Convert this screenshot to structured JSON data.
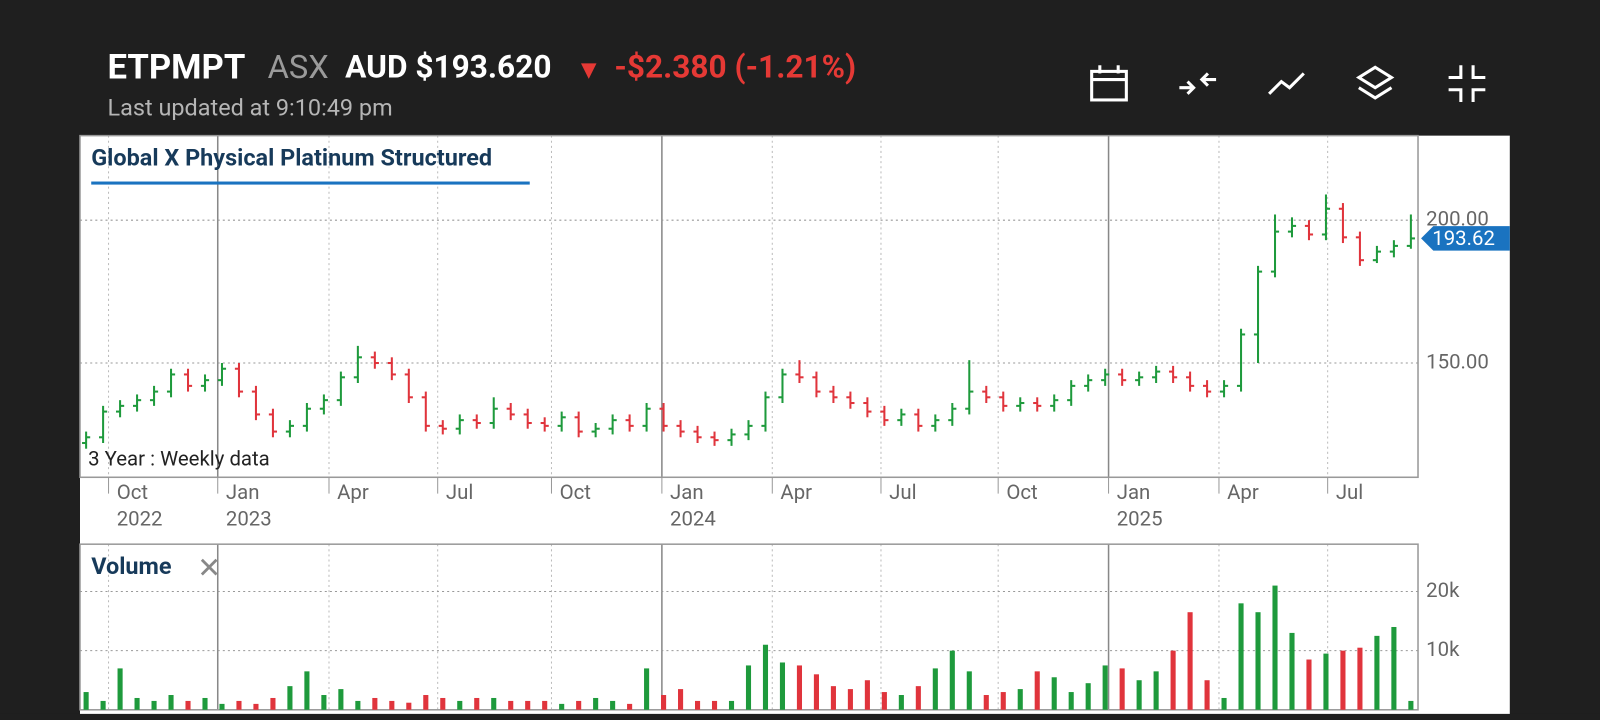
{
  "header": {
    "ticker": "ETPMPT",
    "exchange": "ASX",
    "price": "AUD $193.620",
    "arrow": "▼",
    "change": "-$2.380 (-1.21%)",
    "updated": "Last updated at 9:10:49 pm"
  },
  "chart_data": [
    {
      "type": "ohlc",
      "title": "Global X Physical Platinum Structured",
      "note": "3 Year : Weekly data",
      "up_color": "#1e9a3c",
      "down_color": "#e0343c",
      "last_color": "#1a73c0",
      "xlim": [
        -0.36,
        78.42
      ],
      "xticks": [
        {
          "value": 1.32,
          "label": "Oct",
          "year": "2022"
        },
        {
          "value": 7.75,
          "label": "Jan",
          "year": "2023"
        },
        {
          "value": 14.3,
          "label": "Apr"
        },
        {
          "value": 20.7,
          "label": "Jul"
        },
        {
          "value": 27.4,
          "label": "Oct"
        },
        {
          "value": 33.9,
          "label": "Jan",
          "year": "2024"
        },
        {
          "value": 40.4,
          "label": "Apr"
        },
        {
          "value": 46.8,
          "label": "Jul"
        },
        {
          "value": 53.7,
          "label": "Oct"
        },
        {
          "value": 60.2,
          "label": "Jan",
          "year": "2025"
        },
        {
          "value": 66.7,
          "label": "Apr"
        },
        {
          "value": 73.1,
          "label": "Jul"
        }
      ],
      "ylim": [
        110,
        229.6
      ],
      "yticks": [
        {
          "value": 150,
          "label": "150.00"
        },
        {
          "value": 200,
          "label": "200.00"
        }
      ],
      "open": [
        122,
        124,
        133,
        135,
        137,
        140,
        146,
        142,
        144,
        148,
        140,
        132,
        126,
        128,
        134,
        137,
        145,
        152,
        150,
        146,
        138,
        128,
        127,
        130,
        129,
        134,
        132,
        129,
        128,
        131,
        126,
        127,
        130,
        128,
        134,
        128,
        126,
        124,
        123,
        125,
        128,
        138,
        146,
        145,
        140,
        138,
        136,
        133,
        130,
        132,
        128,
        130,
        134,
        140,
        138,
        135,
        136,
        135,
        137,
        142,
        144,
        146,
        144,
        145,
        147,
        145,
        142,
        140,
        142,
        160,
        182,
        196,
        198,
        195,
        204,
        194,
        186,
        189,
        191
      ],
      "high": [
        126,
        135,
        137,
        139,
        142,
        148,
        148,
        146,
        150,
        150,
        142,
        134,
        130,
        136,
        139,
        147,
        156,
        154,
        152,
        148,
        140,
        130,
        132,
        132,
        138,
        136,
        134,
        131,
        133,
        133,
        129,
        132,
        132,
        136,
        136,
        130,
        128,
        126,
        127,
        130,
        140,
        148,
        151,
        147,
        142,
        140,
        138,
        135,
        134,
        134,
        132,
        136,
        151,
        142,
        140,
        138,
        138,
        139,
        144,
        146,
        148,
        148,
        147,
        149,
        149,
        147,
        144,
        144,
        162,
        184,
        202,
        201,
        200,
        209,
        206,
        196,
        191,
        193,
        202
      ],
      "low": [
        120,
        122,
        131,
        133,
        135,
        138,
        140,
        140,
        142,
        138,
        130,
        124,
        124,
        126,
        132,
        135,
        143,
        148,
        144,
        136,
        126,
        125,
        125,
        127,
        127,
        130,
        127,
        126,
        126,
        124,
        124,
        125,
        126,
        126,
        126,
        124,
        122,
        121,
        121,
        123,
        126,
        136,
        143,
        138,
        136,
        134,
        131,
        128,
        128,
        126,
        126,
        128,
        132,
        136,
        133,
        133,
        133,
        133,
        135,
        140,
        142,
        142,
        142,
        143,
        143,
        140,
        138,
        138,
        140,
        150,
        180,
        194,
        193,
        193,
        192,
        184,
        185,
        187,
        190
      ],
      "close": [
        124,
        133,
        135,
        137,
        140,
        146,
        142,
        144,
        148,
        140,
        132,
        126,
        128,
        134,
        137,
        145,
        152,
        150,
        146,
        138,
        128,
        127,
        130,
        129,
        134,
        132,
        129,
        128,
        131,
        126,
        127,
        130,
        128,
        134,
        128,
        126,
        124,
        123,
        125,
        128,
        138,
        146,
        145,
        140,
        138,
        136,
        133,
        130,
        132,
        128,
        130,
        134,
        140,
        138,
        135,
        136,
        135,
        137,
        142,
        144,
        146,
        144,
        145,
        147,
        145,
        142,
        140,
        142,
        160,
        182,
        196,
        198,
        195,
        204,
        194,
        186,
        189,
        191,
        193.62
      ]
    },
    {
      "type": "volume",
      "title": "Volume",
      "close_icon": "✕",
      "ylim": [
        0,
        28000
      ],
      "yticks": [
        {
          "value": 10000,
          "label": "10k"
        },
        {
          "value": 20000,
          "label": "20k"
        }
      ],
      "values": [
        3000,
        1500,
        7000,
        2000,
        1500,
        2500,
        1500,
        2000,
        1000,
        1500,
        1000,
        2000,
        4000,
        6500,
        2500,
        3500,
        1500,
        2000,
        1500,
        1200,
        2500,
        2000,
        1500,
        2000,
        2000,
        1500,
        1500,
        1500,
        1000,
        1500,
        2000,
        1500,
        1000,
        7000,
        2500,
        3500,
        1500,
        1500,
        1500,
        7500,
        11000,
        8000,
        7500,
        6000,
        4000,
        3500,
        5000,
        3000,
        2500,
        4000,
        7000,
        10000,
        6500,
        2500,
        3000,
        3500,
        6500,
        5500,
        3000,
        4500,
        7500,
        7000,
        5000,
        6500,
        10000,
        16500,
        5000,
        2000,
        18000,
        16500,
        21000,
        13000,
        8500,
        9500,
        10000,
        10500,
        12500,
        14000,
        1500
      ]
    }
  ]
}
